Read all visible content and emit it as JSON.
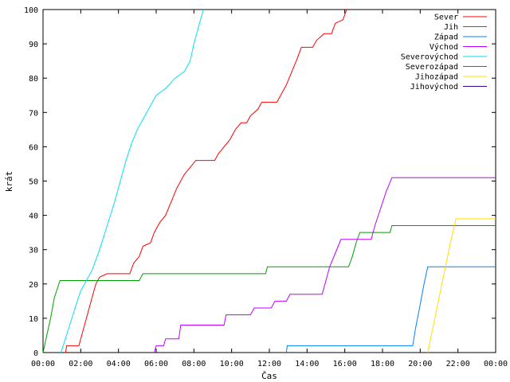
{
  "chart_data": {
    "type": "line",
    "xlabel": "Čas",
    "ylabel": "krát",
    "xlim": [
      0,
      24
    ],
    "ylim": [
      0,
      100
    ],
    "x_ticks": [
      "00:00",
      "02:00",
      "04:00",
      "06:00",
      "08:00",
      "10:00",
      "12:00",
      "14:00",
      "16:00",
      "18:00",
      "20:00",
      "22:00",
      "00:00"
    ],
    "y_ticks": [
      "0",
      "10",
      "20",
      "30",
      "40",
      "50",
      "60",
      "70",
      "80",
      "90",
      "100"
    ],
    "grid": false,
    "legend_position": "top-right",
    "series": [
      {
        "name": "Sever",
        "color": "#ff0000",
        "points": [
          [
            1.2,
            0
          ],
          [
            1.25,
            2
          ],
          [
            1.9,
            2
          ],
          [
            2.1,
            6
          ],
          [
            2.4,
            12
          ],
          [
            2.6,
            16
          ],
          [
            2.8,
            20
          ],
          [
            3.0,
            22
          ],
          [
            3.4,
            23
          ],
          [
            4.6,
            23
          ],
          [
            4.8,
            26
          ],
          [
            5.1,
            28
          ],
          [
            5.3,
            31
          ],
          [
            5.7,
            32
          ],
          [
            5.9,
            35
          ],
          [
            6.2,
            38
          ],
          [
            6.5,
            40
          ],
          [
            6.8,
            44
          ],
          [
            7.1,
            48
          ],
          [
            7.5,
            52
          ],
          [
            7.8,
            54
          ],
          [
            8.1,
            56
          ],
          [
            9.1,
            56
          ],
          [
            9.3,
            58
          ],
          [
            9.6,
            60
          ],
          [
            9.9,
            62
          ],
          [
            10.2,
            65
          ],
          [
            10.5,
            67
          ],
          [
            10.8,
            67
          ],
          [
            11.0,
            69
          ],
          [
            11.4,
            71
          ],
          [
            11.6,
            73
          ],
          [
            12.4,
            73
          ],
          [
            12.6,
            75
          ],
          [
            12.9,
            78
          ],
          [
            13.2,
            82
          ],
          [
            13.5,
            86
          ],
          [
            13.7,
            89
          ],
          [
            14.3,
            89
          ],
          [
            14.5,
            91
          ],
          [
            14.9,
            93
          ],
          [
            15.3,
            93
          ],
          [
            15.5,
            96
          ],
          [
            15.9,
            97
          ],
          [
            16.1,
            100
          ]
        ]
      },
      {
        "name": "Jih",
        "color": "#00a000",
        "points": [
          [
            0.0,
            0
          ],
          [
            0.2,
            5
          ],
          [
            0.4,
            10
          ],
          [
            0.6,
            16
          ],
          [
            0.9,
            21
          ],
          [
            5.1,
            21
          ],
          [
            5.3,
            23
          ],
          [
            11.8,
            23
          ],
          [
            11.9,
            25
          ],
          [
            16.2,
            25
          ],
          [
            16.4,
            28
          ],
          [
            16.6,
            32
          ],
          [
            16.8,
            35
          ],
          [
            18.4,
            35
          ],
          [
            18.5,
            37
          ],
          [
            24,
            37
          ]
        ]
      },
      {
        "name": "Západ",
        "color": "#0080ff",
        "points": [
          [
            12.9,
            0
          ],
          [
            12.95,
            2
          ],
          [
            19.6,
            2
          ],
          [
            19.75,
            7
          ],
          [
            20.0,
            14
          ],
          [
            20.2,
            20
          ],
          [
            20.4,
            25
          ],
          [
            24,
            25
          ]
        ]
      },
      {
        "name": "Východ",
        "color": "#c000ff",
        "points": [
          [
            5.9,
            0
          ],
          [
            6.0,
            2
          ],
          [
            6.4,
            2
          ],
          [
            6.5,
            4
          ],
          [
            7.2,
            4
          ],
          [
            7.3,
            8
          ],
          [
            9.6,
            8
          ],
          [
            9.7,
            11
          ],
          [
            11.0,
            11
          ],
          [
            11.2,
            13
          ],
          [
            12.1,
            13
          ],
          [
            12.3,
            15
          ],
          [
            12.9,
            15
          ],
          [
            13.1,
            17
          ],
          [
            14.8,
            17
          ],
          [
            15.0,
            21
          ],
          [
            15.2,
            25
          ],
          [
            15.5,
            29
          ],
          [
            15.8,
            33
          ],
          [
            17.4,
            33
          ],
          [
            17.6,
            37
          ],
          [
            17.9,
            42
          ],
          [
            18.2,
            47
          ],
          [
            18.5,
            51
          ],
          [
            24,
            51
          ]
        ]
      },
      {
        "name": "Severovýchod",
        "color": "#00e0f0",
        "points": [
          [
            0.95,
            0
          ],
          [
            1.3,
            6
          ],
          [
            1.7,
            13
          ],
          [
            2.0,
            18
          ],
          [
            2.3,
            21
          ],
          [
            2.6,
            24
          ],
          [
            3.0,
            30
          ],
          [
            3.4,
            37
          ],
          [
            3.8,
            44
          ],
          [
            4.1,
            50
          ],
          [
            4.4,
            56
          ],
          [
            4.7,
            61
          ],
          [
            5.0,
            65
          ],
          [
            5.3,
            68
          ],
          [
            5.6,
            71
          ],
          [
            6.0,
            75
          ],
          [
            6.5,
            77
          ],
          [
            7.0,
            80
          ],
          [
            7.5,
            82
          ],
          [
            7.8,
            85
          ],
          [
            8.0,
            90
          ],
          [
            8.3,
            96
          ],
          [
            8.5,
            100
          ]
        ]
      },
      {
        "name": "Severozápad",
        "color": "#c04000",
        "points": []
      },
      {
        "name": "Jihozápad",
        "color": "#ffe000",
        "points": [
          [
            20.4,
            0
          ],
          [
            20.7,
            8
          ],
          [
            21.0,
            16
          ],
          [
            21.3,
            24
          ],
          [
            21.6,
            32
          ],
          [
            21.9,
            39
          ],
          [
            24,
            39
          ]
        ]
      },
      {
        "name": "Jihovýchod",
        "color": "#4000a0",
        "points": []
      }
    ]
  }
}
